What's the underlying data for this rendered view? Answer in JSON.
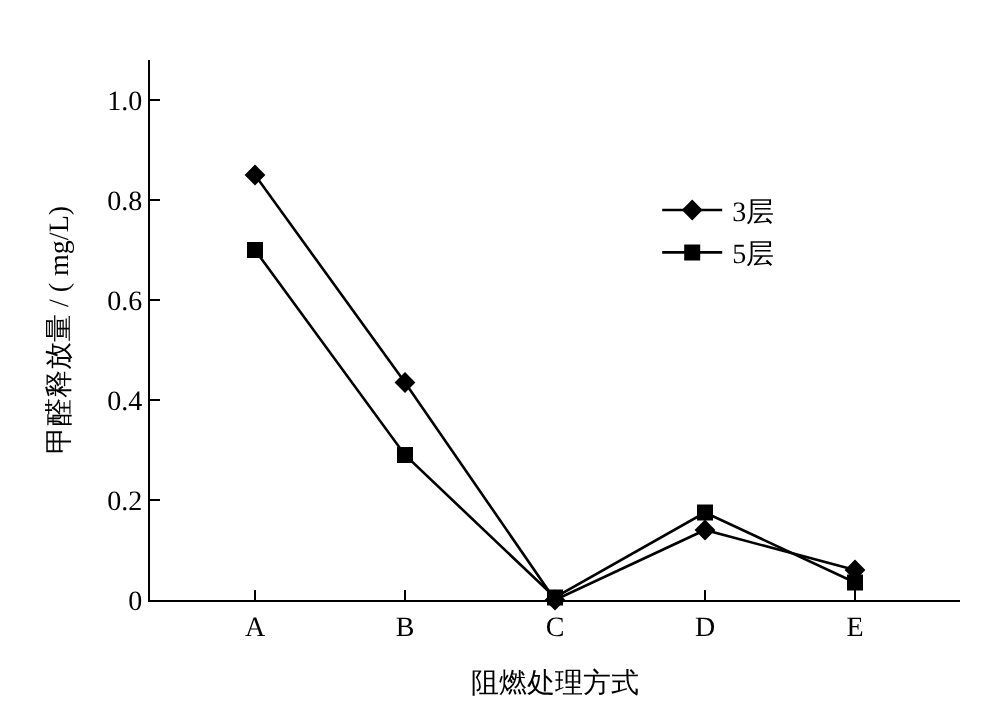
{
  "chart_data": {
    "type": "line",
    "xlabel": "阻燃处理方式",
    "ylabel": "甲醛释放量 / ( mg/L)",
    "categories": [
      "A",
      "B",
      "C",
      "D",
      "E"
    ],
    "series": [
      {
        "name": "3层",
        "color": "#000000",
        "marker": "diamond",
        "values": [
          0.85,
          0.435,
          0.0,
          0.14,
          0.06
        ]
      },
      {
        "name": "5层",
        "color": "#000000",
        "marker": "square",
        "values": [
          0.7,
          0.29,
          0.005,
          0.175,
          0.035
        ]
      }
    ],
    "ylim": [
      0,
      1.08
    ],
    "yticks": [
      0,
      0.2,
      0.4,
      0.6,
      0.8,
      {
        "value": 1,
        "label": "1.0"
      }
    ],
    "legend": "top right",
    "line_style": "solid"
  }
}
